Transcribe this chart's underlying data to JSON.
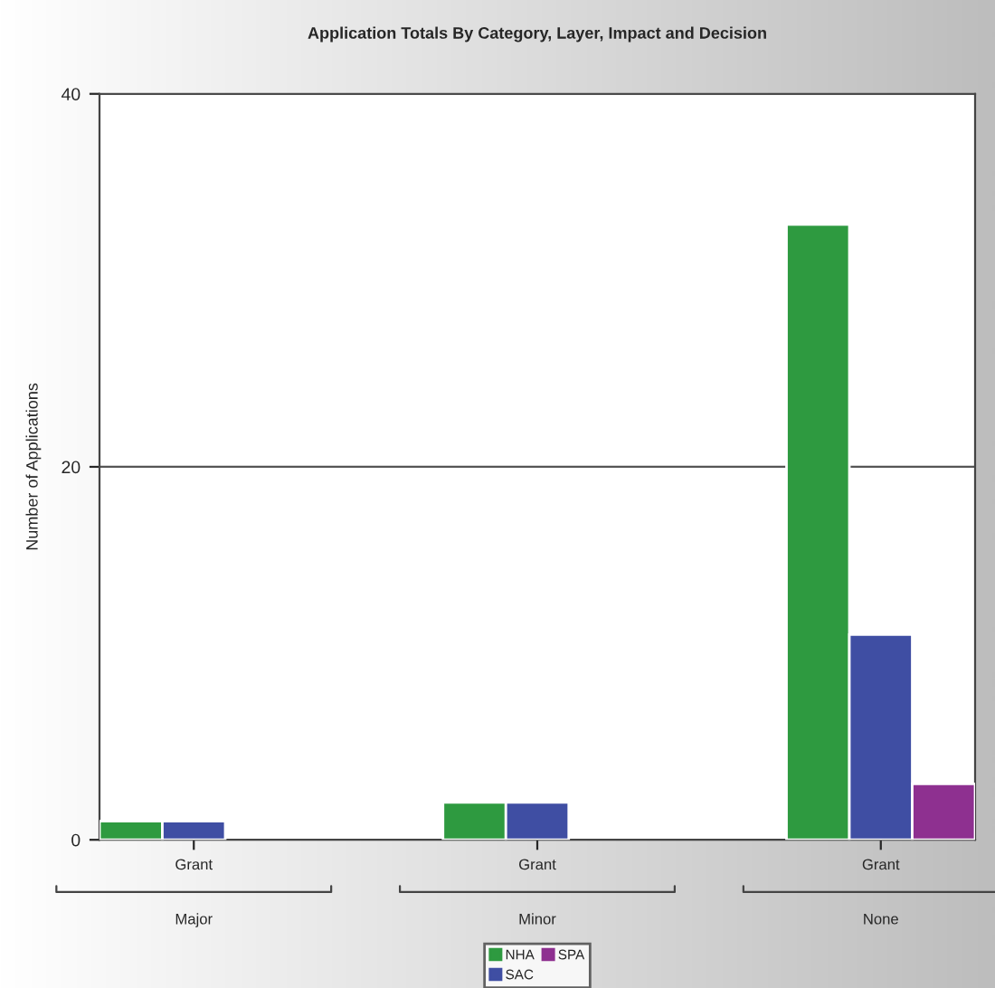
{
  "chart_data": {
    "type": "bar",
    "title": "Application Totals By Category, Layer, Impact and Decision",
    "ylabel": "Number of Applications",
    "categories": [
      "Grant",
      "Grant",
      "Grant"
    ],
    "annotations": [
      "Major",
      "Minor",
      "None"
    ],
    "series": [
      {
        "name": "NHA",
        "color": "#2e9a40",
        "values": [
          1,
          2,
          33
        ]
      },
      {
        "name": "SAC",
        "color": "#3f4ea3",
        "values": [
          1,
          2,
          11
        ]
      },
      {
        "name": "SPA",
        "color": "#8e3090",
        "values": [
          null,
          null,
          3
        ]
      }
    ],
    "ylim": [
      0,
      40
    ],
    "yticks": [
      0,
      20,
      40
    ],
    "grid": "y",
    "legend": "bottom"
  }
}
